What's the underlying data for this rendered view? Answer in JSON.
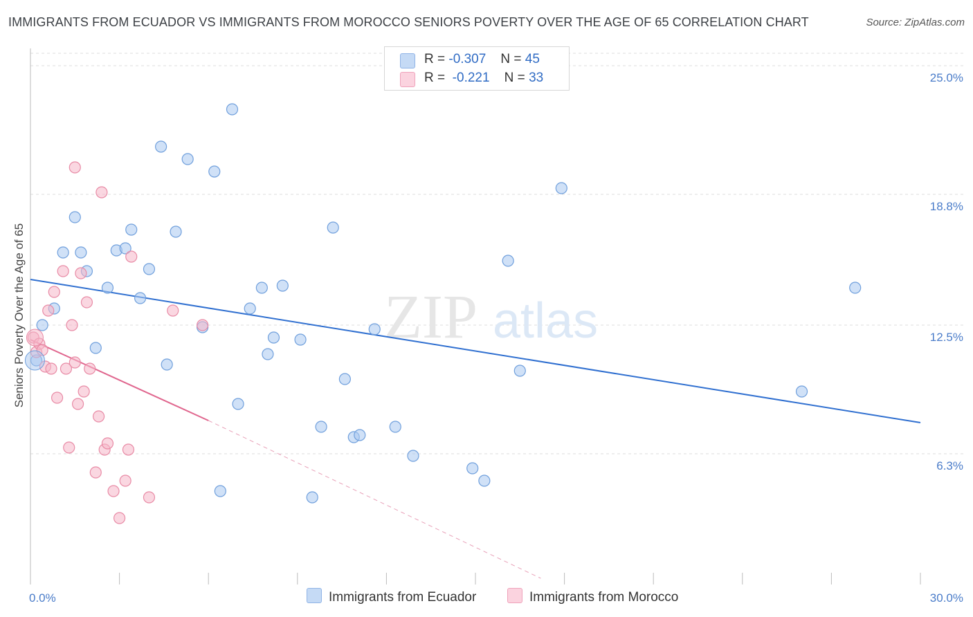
{
  "title": "IMMIGRANTS FROM ECUADOR VS IMMIGRANTS FROM MOROCCO SENIORS POVERTY OVER THE AGE OF 65 CORRELATION CHART",
  "source": "Source: ZipAtlas.com",
  "watermark": {
    "zip": "ZIP",
    "atlas": "atlas"
  },
  "legend": {
    "rows": [
      {
        "r_label": "R =",
        "r_value": "-0.307",
        "n_label": "N =",
        "n_value": "45",
        "color": "#a9c8f0"
      },
      {
        "r_label": "R =",
        "r_value": "-0.221",
        "n_label": "N =",
        "n_value": "33",
        "color": "#f6b6c8"
      }
    ]
  },
  "chart_data": {
    "type": "scatter",
    "title": "IMMIGRANTS FROM ECUADOR VS IMMIGRANTS FROM MOROCCO SENIORS POVERTY OVER THE AGE OF 65 CORRELATION CHART",
    "xlabel": "",
    "ylabel": "Seniors Poverty Over the Age of 65",
    "xlim": [
      0,
      30
    ],
    "ylim": [
      0,
      25.6
    ],
    "x_tick_labels": [
      "0.0%",
      "30.0%"
    ],
    "y_ticks": [
      6.3,
      12.5,
      18.8,
      25.0
    ],
    "y_tick_labels": [
      "6.3%",
      "12.5%",
      "18.8%",
      "25.0%"
    ],
    "grid": true,
    "legend_position": "bottom",
    "series": [
      {
        "name": "Immigrants from Ecuador",
        "color": "#a9c8f0",
        "stroke": "#6f9fdc",
        "trend": {
          "x0": 0.0,
          "y0": 14.7,
          "x1": 30.0,
          "y1": 7.8,
          "color": "#2f6fd0"
        },
        "points": [
          [
            0.2,
            10.8
          ],
          [
            0.4,
            12.5
          ],
          [
            0.8,
            13.3
          ],
          [
            1.1,
            16.0
          ],
          [
            1.5,
            17.7
          ],
          [
            1.7,
            16.0
          ],
          [
            1.9,
            15.1
          ],
          [
            2.2,
            11.4
          ],
          [
            2.6,
            14.3
          ],
          [
            2.9,
            16.1
          ],
          [
            3.2,
            16.2
          ],
          [
            3.4,
            17.1
          ],
          [
            3.7,
            13.8
          ],
          [
            4.0,
            15.2
          ],
          [
            4.4,
            21.1
          ],
          [
            4.6,
            10.6
          ],
          [
            4.9,
            17.0
          ],
          [
            5.3,
            20.5
          ],
          [
            5.8,
            12.4
          ],
          [
            6.2,
            19.9
          ],
          [
            6.4,
            4.5
          ],
          [
            6.8,
            22.9
          ],
          [
            7.0,
            8.7
          ],
          [
            7.4,
            13.3
          ],
          [
            7.8,
            14.3
          ],
          [
            8.0,
            11.1
          ],
          [
            8.2,
            11.9
          ],
          [
            8.5,
            14.4
          ],
          [
            9.1,
            11.8
          ],
          [
            9.5,
            4.2
          ],
          [
            9.8,
            7.6
          ],
          [
            10.2,
            17.2
          ],
          [
            10.6,
            9.9
          ],
          [
            10.9,
            7.1
          ],
          [
            11.1,
            7.2
          ],
          [
            11.6,
            12.3
          ],
          [
            12.3,
            7.6
          ],
          [
            12.9,
            6.2
          ],
          [
            14.9,
            5.6
          ],
          [
            15.3,
            5.0
          ],
          [
            16.1,
            15.6
          ],
          [
            16.5,
            10.3
          ],
          [
            17.9,
            19.1
          ],
          [
            26.0,
            9.3
          ],
          [
            27.8,
            14.3
          ]
        ]
      },
      {
        "name": "Immigrants from Morocco",
        "color": "#f6b6c8",
        "stroke": "#e88aa5",
        "trend": {
          "x0": 0.0,
          "y0": 11.8,
          "x1": 6.0,
          "y1": 7.9,
          "color": "#e0668e"
        },
        "trend_dashed": {
          "x0": 6.0,
          "y0": 7.9,
          "x1": 17.2,
          "y1": 0.3,
          "color": "#e8a0b8"
        },
        "points": [
          [
            0.1,
            11.9
          ],
          [
            0.2,
            11.2
          ],
          [
            0.3,
            11.6
          ],
          [
            0.4,
            11.3
          ],
          [
            0.5,
            10.5
          ],
          [
            0.6,
            13.2
          ],
          [
            0.7,
            10.4
          ],
          [
            0.8,
            14.1
          ],
          [
            0.9,
            9.0
          ],
          [
            1.1,
            15.1
          ],
          [
            1.2,
            10.4
          ],
          [
            1.3,
            6.6
          ],
          [
            1.4,
            12.5
          ],
          [
            1.5,
            10.7
          ],
          [
            1.6,
            8.7
          ],
          [
            1.7,
            15.0
          ],
          [
            1.8,
            9.3
          ],
          [
            1.9,
            13.6
          ],
          [
            2.0,
            10.4
          ],
          [
            2.2,
            5.4
          ],
          [
            2.3,
            8.1
          ],
          [
            2.4,
            18.9
          ],
          [
            2.5,
            6.5
          ],
          [
            2.6,
            6.8
          ],
          [
            2.8,
            4.5
          ],
          [
            3.0,
            3.2
          ],
          [
            3.2,
            5.0
          ],
          [
            3.3,
            6.5
          ],
          [
            3.4,
            15.8
          ],
          [
            4.0,
            4.2
          ],
          [
            4.8,
            13.2
          ],
          [
            5.8,
            12.5
          ],
          [
            1.5,
            20.1
          ]
        ]
      }
    ]
  },
  "bottom_legend": {
    "items": [
      {
        "label": "Immigrants from Ecuador",
        "color": "#a9c8f0"
      },
      {
        "label": "Immigrants from Morocco",
        "color": "#f6b6c8"
      }
    ]
  }
}
